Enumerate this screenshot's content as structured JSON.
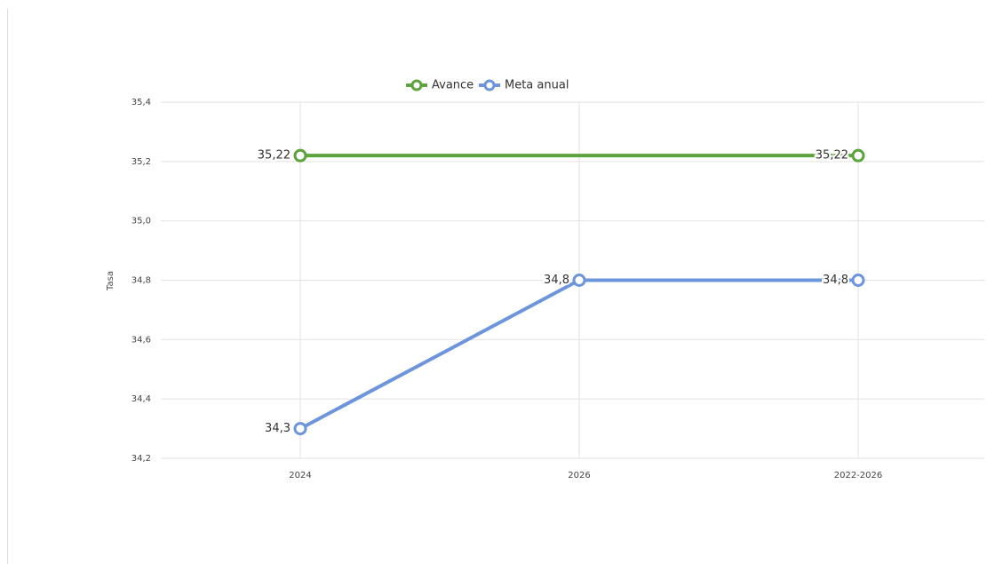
{
  "chart_data": {
    "type": "line",
    "categories": [
      "2024",
      "2026",
      "2022-2026"
    ],
    "y_label": "Tasa",
    "ylim": [
      34.2,
      35.4
    ],
    "yticks": [
      {
        "value": 34.2,
        "label": "34,2"
      },
      {
        "value": 34.4,
        "label": "34,4"
      },
      {
        "value": 34.6,
        "label": "34,6"
      },
      {
        "value": 34.8,
        "label": "34,8"
      },
      {
        "value": 35.0,
        "label": "35,0"
      },
      {
        "value": 35.2,
        "label": "35,2"
      },
      {
        "value": 35.4,
        "label": "35,4"
      }
    ],
    "grid": true,
    "legend": "top",
    "series": [
      {
        "name": "Avance",
        "color": "#5ba33b",
        "values": [
          35.22,
          null,
          35.22
        ],
        "value_labels": [
          "35,22",
          null,
          "35,22"
        ],
        "markers": true,
        "span_gaps": true
      },
      {
        "name": "Meta anual",
        "color": "#6d95db",
        "values": [
          34.3,
          34.8,
          34.8
        ],
        "value_labels": [
          "34,3",
          "34,8",
          "34,8"
        ],
        "markers": true,
        "span_gaps": false
      }
    ]
  }
}
